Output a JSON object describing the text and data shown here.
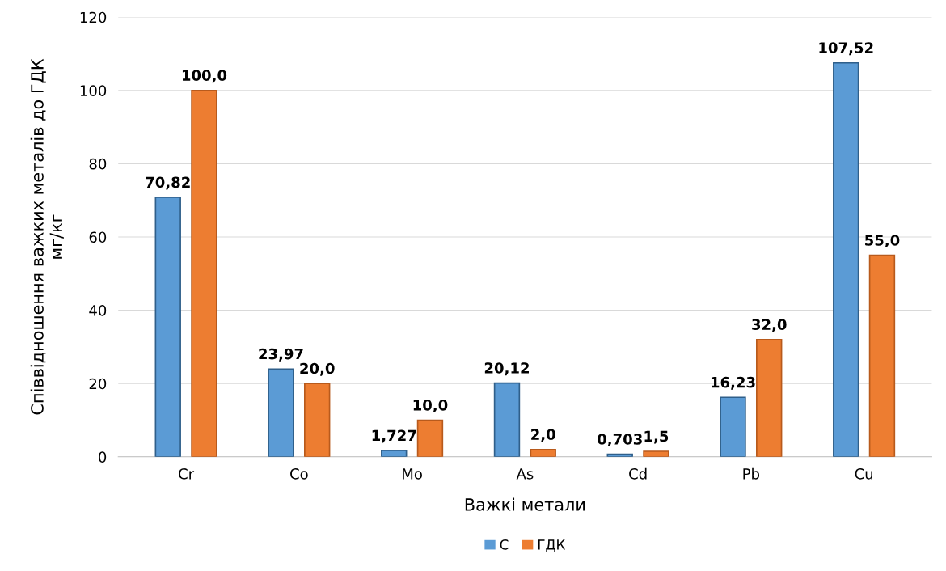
{
  "chart_data": {
    "type": "bar",
    "xlabel": "Важкі метали",
    "ylabel": "Співвідношення важких металів до ГДК\nмг/кг",
    "categories": [
      "Cr",
      "Co",
      "Mo",
      "As",
      "Cd",
      "Pb",
      "Cu"
    ],
    "series": [
      {
        "name": "С",
        "color": "#5b9bd5",
        "values": [
          70.82,
          23.97,
          1.727,
          20.12,
          0.703,
          16.23,
          107.52
        ],
        "value_labels": [
          "70,82",
          "23,97",
          "1,727",
          "20,12",
          "0,703",
          "16,23",
          "107,52"
        ]
      },
      {
        "name": "ГДК",
        "color": "#ed7d31",
        "values": [
          100.0,
          20.0,
          10.0,
          2.0,
          1.5,
          32.0,
          55.0
        ],
        "value_labels": [
          "100,0",
          "20,0",
          "10,0",
          "2,0",
          "1,5",
          "32,0",
          "55,0"
        ]
      }
    ],
    "ylim": [
      0,
      120
    ],
    "yticks": [
      0,
      20,
      40,
      60,
      80,
      100,
      120
    ],
    "grid": "y",
    "legend": "bottom"
  }
}
